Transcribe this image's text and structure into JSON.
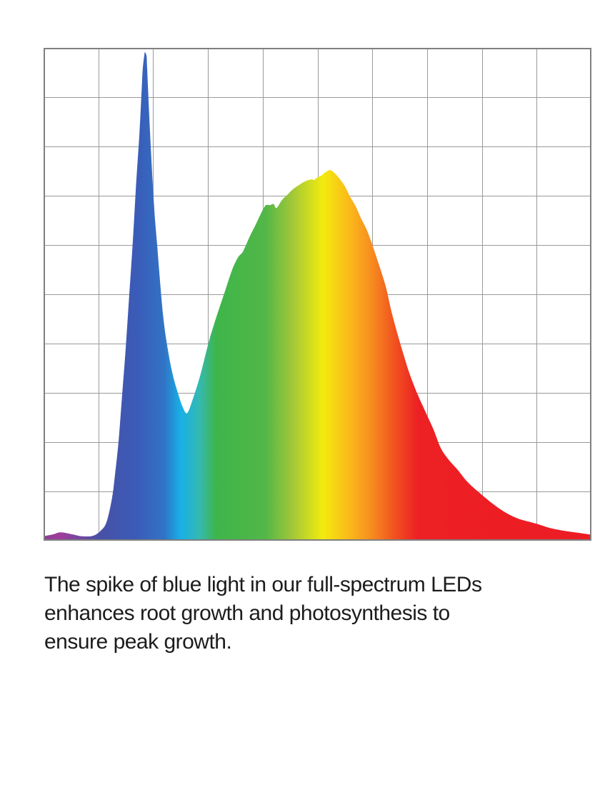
{
  "page": {
    "background_color": "#ffffff"
  },
  "caption": {
    "lines": [
      "The spike of blue light in our full-spectrum LEDs",
      "enhances root growth and photosynthesis to",
      "ensure peak growth."
    ],
    "full_text": "The spike of blue light in our full-spectrum LEDs enhances root growth and photosynthesis to ensure peak growth.",
    "text_color": "#1c1c1c"
  },
  "chart_data": {
    "type": "area",
    "title": "",
    "xlabel": "",
    "ylabel": "",
    "axis_tick_labels": "none visible",
    "legend": "none",
    "grid": {
      "cols": 10,
      "rows": 10,
      "color": "#9a9a9a",
      "border_color": "#7f7f7f",
      "grid_on": true
    },
    "x_range_pct": [
      0,
      100
    ],
    "y_range_pct": [
      0,
      100
    ],
    "peaks": [
      {
        "name": "blue-spike",
        "x_pct": 18.5,
        "intensity_pct": 99.1
      },
      {
        "name": "broad-warm-peak",
        "x_pct": 52.3,
        "intensity_pct": 75.2
      }
    ],
    "valley": {
      "name": "blue-green-valley",
      "x_pct": 26.2,
      "intensity_pct": 25.9
    },
    "curve_points": [
      [
        0.0,
        0.9
      ],
      [
        1.8,
        1.3
      ],
      [
        3.1,
        1.7
      ],
      [
        5.2,
        1.3
      ],
      [
        7.0,
        0.9
      ],
      [
        9.0,
        1.0
      ],
      [
        10.4,
        2.0
      ],
      [
        11.5,
        3.8
      ],
      [
        12.5,
        8.7
      ],
      [
        13.0,
        13.0
      ],
      [
        13.7,
        20.3
      ],
      [
        14.3,
        29.0
      ],
      [
        15.0,
        39.1
      ],
      [
        15.6,
        49.3
      ],
      [
        16.3,
        60.9
      ],
      [
        16.9,
        72.5
      ],
      [
        17.5,
        82.6
      ],
      [
        17.9,
        91.3
      ],
      [
        18.1,
        95.7
      ],
      [
        18.4,
        98.6
      ],
      [
        18.5,
        99.1
      ],
      [
        18.8,
        98.3
      ],
      [
        18.9,
        95.9
      ],
      [
        19.4,
        83.6
      ],
      [
        20.1,
        69.1
      ],
      [
        20.7,
        60.4
      ],
      [
        21.8,
        45.9
      ],
      [
        22.7,
        38.7
      ],
      [
        23.6,
        33.6
      ],
      [
        24.6,
        29.7
      ],
      [
        25.4,
        27.1
      ],
      [
        26.2,
        25.9
      ],
      [
        27.2,
        28.6
      ],
      [
        28.6,
        33.6
      ],
      [
        30.1,
        40.1
      ],
      [
        31.2,
        44.2
      ],
      [
        33.1,
        50.6
      ],
      [
        34.4,
        54.9
      ],
      [
        35.5,
        57.5
      ],
      [
        36.4,
        58.7
      ],
      [
        37.7,
        61.9
      ],
      [
        38.7,
        64.1
      ],
      [
        39.6,
        66.2
      ],
      [
        40.5,
        68.0
      ],
      [
        41.3,
        68.1
      ],
      [
        42.0,
        68.3
      ],
      [
        42.5,
        67.5
      ],
      [
        43.5,
        69.1
      ],
      [
        44.6,
        70.3
      ],
      [
        45.5,
        71.3
      ],
      [
        46.8,
        72.3
      ],
      [
        47.7,
        72.9
      ],
      [
        48.8,
        73.3
      ],
      [
        49.4,
        73.2
      ],
      [
        49.8,
        73.6
      ],
      [
        50.7,
        74.1
      ],
      [
        51.5,
        74.8
      ],
      [
        52.3,
        75.2
      ],
      [
        53.1,
        74.6
      ],
      [
        54.0,
        73.5
      ],
      [
        55.0,
        71.9
      ],
      [
        55.9,
        69.9
      ],
      [
        57.0,
        67.8
      ],
      [
        57.9,
        65.5
      ],
      [
        58.9,
        63.3
      ],
      [
        59.8,
        60.7
      ],
      [
        61.1,
        56.4
      ],
      [
        62.5,
        51.4
      ],
      [
        63.5,
        46.5
      ],
      [
        64.7,
        41.6
      ],
      [
        65.7,
        37.8
      ],
      [
        66.8,
        33.9
      ],
      [
        68.3,
        29.6
      ],
      [
        69.9,
        25.7
      ],
      [
        71.2,
        22.5
      ],
      [
        72.5,
        18.8
      ],
      [
        73.9,
        16.5
      ],
      [
        75.5,
        14.5
      ],
      [
        77.4,
        11.9
      ],
      [
        79.9,
        9.4
      ],
      [
        82.0,
        7.5
      ],
      [
        84.2,
        5.8
      ],
      [
        86.6,
        4.5
      ],
      [
        89.8,
        3.5
      ],
      [
        92.4,
        2.6
      ],
      [
        95.1,
        2.0
      ],
      [
        97.7,
        1.6
      ],
      [
        100.0,
        1.2
      ]
    ],
    "spectrum_gradient": [
      {
        "pos": 0.0,
        "color": "#8a4197"
      },
      {
        "pos": 0.03,
        "color": "#a03c9b"
      },
      {
        "pos": 0.1,
        "color": "#4950a5"
      },
      {
        "pos": 0.17,
        "color": "#3a5cb8"
      },
      {
        "pos": 0.22,
        "color": "#3173c5"
      },
      {
        "pos": 0.25,
        "color": "#18b0e7"
      },
      {
        "pos": 0.285,
        "color": "#35b9b0"
      },
      {
        "pos": 0.315,
        "color": "#3eb54a"
      },
      {
        "pos": 0.405,
        "color": "#52b748"
      },
      {
        "pos": 0.455,
        "color": "#a3c838"
      },
      {
        "pos": 0.51,
        "color": "#f3eb0e"
      },
      {
        "pos": 0.56,
        "color": "#fbb71b"
      },
      {
        "pos": 0.6,
        "color": "#f68b1f"
      },
      {
        "pos": 0.638,
        "color": "#f1551f"
      },
      {
        "pos": 0.683,
        "color": "#ed2024"
      },
      {
        "pos": 1.0,
        "color": "#ec1c24"
      }
    ]
  }
}
